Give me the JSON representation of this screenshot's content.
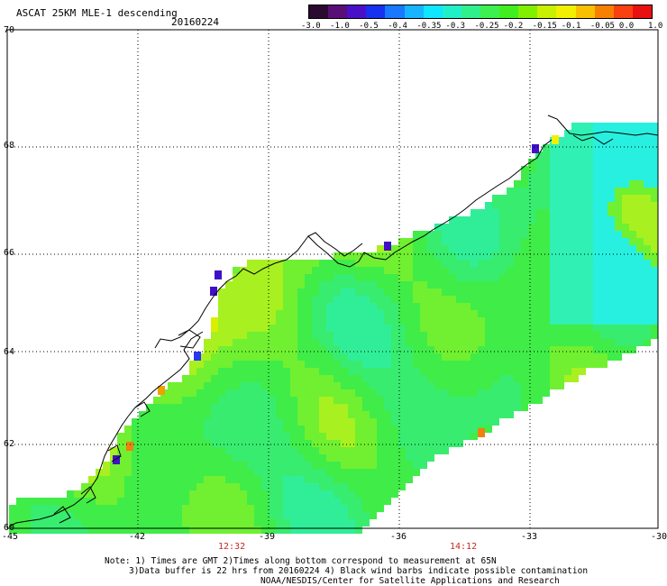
{
  "title": "ASCAT 25KM MLE-1 descending",
  "date": "20160224",
  "colorbar": {
    "colors": [
      "#2a0a30",
      "#5a0e78",
      "#4a10c8",
      "#1830f0",
      "#1878ff",
      "#18b4ff",
      "#10e6ff",
      "#20f0c8",
      "#30f08c",
      "#3cf050",
      "#40ee20",
      "#80f000",
      "#c8f000",
      "#f0f000",
      "#f8c000",
      "#f88000",
      "#f84010",
      "#e81010"
    ],
    "labels": [
      "-3.0",
      "-1.0",
      "-0.5",
      "-0.4",
      "-0.35",
      "-0.3",
      "-0.25",
      "-0.2",
      "-0.15",
      "-0.1",
      "-0.05",
      "0.0",
      "1.0"
    ]
  },
  "axes": {
    "lat_labels": [
      "70",
      "68",
      "66",
      "64",
      "62",
      "60"
    ],
    "lon_labels": [
      "-45",
      "-42",
      "-39",
      "-36",
      "-33",
      "-30"
    ]
  },
  "times": [
    "12:32",
    "14:12"
  ],
  "notes": [
    "Note: 1) Times are GMT 2)Times along bottom correspond to measurement at 65N",
    "3)Data buffer is 22 hrs from 20160224 4) Black wind barbs indicate possible contamination",
    "NOAA/NESDIS/Center for Satellite Applications and Research"
  ]
}
